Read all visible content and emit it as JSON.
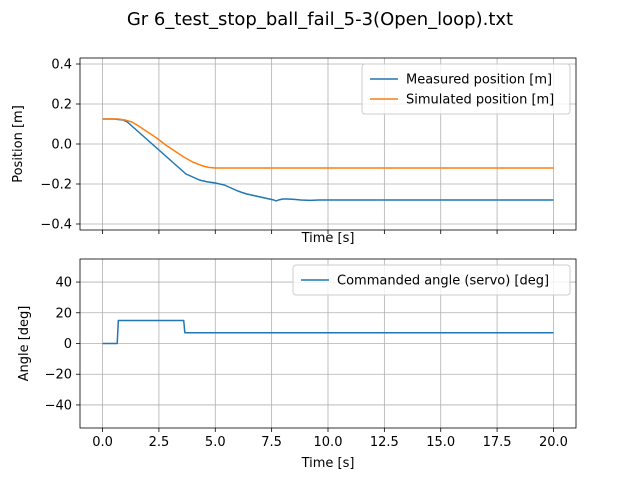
{
  "figure_title": "Gr 6_test_stop_ball_fail_5-3(Open_loop).txt",
  "chart_data": [
    {
      "type": "line",
      "xlabel": "Time [s]",
      "ylabel": "Position [m]",
      "xlim": [
        -1.0,
        21.0
      ],
      "ylim": [
        -0.43,
        0.43
      ],
      "xticks": [
        0.0,
        2.5,
        5.0,
        7.5,
        10.0,
        12.5,
        15.0,
        17.5,
        20.0
      ],
      "xtick_labels_visible": false,
      "yticks": [
        -0.4,
        -0.2,
        0.0,
        0.2,
        0.4
      ],
      "ytick_labels": [
        "−0.4",
        "−0.2",
        "0.0",
        "0.2",
        "0.4"
      ],
      "grid": true,
      "legend": "top-right",
      "series": [
        {
          "name": "Measured position [m]",
          "color": "#1f77b4",
          "x": [
            0.0,
            0.5,
            0.9,
            1.0,
            1.1,
            1.2,
            1.3,
            1.4,
            1.5,
            1.6,
            1.7,
            1.8,
            1.9,
            2.0,
            2.1,
            2.2,
            2.3,
            2.4,
            2.5,
            2.6,
            2.7,
            2.8,
            2.9,
            3.0,
            3.1,
            3.2,
            3.3,
            3.4,
            3.5,
            3.6,
            3.7,
            3.8,
            3.9,
            4.0,
            4.1,
            4.2,
            4.3,
            4.4,
            4.5,
            4.6,
            4.7,
            4.8,
            4.9,
            5.0,
            5.2,
            5.4,
            5.6,
            5.8,
            6.0,
            6.2,
            6.4,
            6.6,
            6.8,
            7.0,
            7.2,
            7.4,
            7.6,
            7.7,
            7.8,
            8.0,
            8.2,
            8.5,
            8.8,
            9.2,
            9.6,
            10.0,
            12.0,
            15.0,
            20.0
          ],
          "y": [
            0.125,
            0.125,
            0.12,
            0.115,
            0.11,
            0.1,
            0.09,
            0.08,
            0.07,
            0.06,
            0.05,
            0.04,
            0.03,
            0.02,
            0.01,
            0.0,
            -0.01,
            -0.02,
            -0.03,
            -0.04,
            -0.05,
            -0.06,
            -0.07,
            -0.08,
            -0.09,
            -0.1,
            -0.11,
            -0.12,
            -0.13,
            -0.14,
            -0.15,
            -0.155,
            -0.16,
            -0.165,
            -0.17,
            -0.175,
            -0.18,
            -0.183,
            -0.185,
            -0.188,
            -0.19,
            -0.192,
            -0.193,
            -0.195,
            -0.2,
            -0.205,
            -0.215,
            -0.225,
            -0.235,
            -0.243,
            -0.25,
            -0.255,
            -0.26,
            -0.265,
            -0.27,
            -0.275,
            -0.28,
            -0.285,
            -0.28,
            -0.275,
            -0.275,
            -0.277,
            -0.28,
            -0.282,
            -0.28,
            -0.28,
            -0.28,
            -0.28,
            -0.28
          ]
        },
        {
          "name": "Simulated position [m]",
          "color": "#ff7f0e",
          "x": [
            0.0,
            0.7,
            1.0,
            1.3,
            1.6,
            2.0,
            2.4,
            2.8,
            3.2,
            3.6,
            4.0,
            4.4,
            4.7,
            5.0,
            10.0,
            15.0,
            20.0
          ],
          "y": [
            0.125,
            0.125,
            0.12,
            0.11,
            0.09,
            0.06,
            0.03,
            -0.005,
            -0.035,
            -0.065,
            -0.09,
            -0.108,
            -0.117,
            -0.12,
            -0.12,
            -0.12,
            -0.12
          ]
        }
      ]
    },
    {
      "type": "line",
      "xlabel": "Time [s]",
      "ylabel": "Angle [deg]",
      "xlim": [
        -1.0,
        21.0
      ],
      "ylim": [
        -55,
        55
      ],
      "xticks": [
        0.0,
        2.5,
        5.0,
        7.5,
        10.0,
        12.5,
        15.0,
        17.5,
        20.0
      ],
      "xtick_labels": [
        "0.0",
        "2.5",
        "5.0",
        "7.5",
        "10.0",
        "12.5",
        "15.0",
        "17.5",
        "20.0"
      ],
      "yticks": [
        -40,
        -20,
        0,
        20,
        40
      ],
      "ytick_labels": [
        "−40",
        "−20",
        "0",
        "20",
        "40"
      ],
      "grid": true,
      "legend": "top-right",
      "series": [
        {
          "name": "Commanded angle (servo) [deg]",
          "color": "#1f77b4",
          "x": [
            0.0,
            0.65,
            0.7,
            3.6,
            3.65,
            20.0
          ],
          "y": [
            0,
            0,
            15,
            15,
            7,
            7
          ]
        }
      ]
    }
  ]
}
